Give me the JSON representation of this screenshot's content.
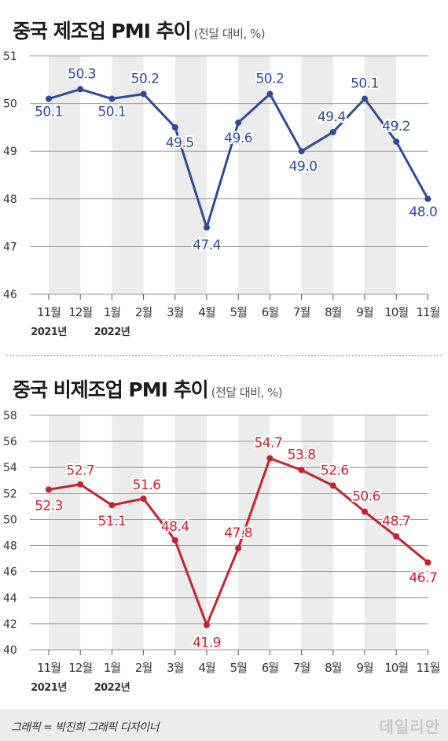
{
  "chart_data": [
    {
      "type": "line",
      "title": "중국 제조업 PMI 추이",
      "subtitle": "(전달 대비, %)",
      "categories": [
        "11월",
        "12월",
        "1월",
        "2월",
        "3월",
        "4월",
        "5월",
        "6월",
        "7월",
        "8월",
        "9월",
        "10월",
        "11월"
      ],
      "year_labels": [
        {
          "label": "2021년",
          "index": 0
        },
        {
          "label": "2022년",
          "index": 2
        }
      ],
      "series": [
        {
          "values": [
            50.1,
            50.3,
            50.1,
            50.2,
            49.5,
            47.4,
            49.6,
            50.2,
            49.0,
            49.4,
            50.1,
            49.2,
            48.0
          ]
        }
      ],
      "value_labels": [
        "50.1",
        "50.3",
        "50.1",
        "50.2",
        "49.5",
        "47.4",
        "49.6",
        "50.2",
        "49.0",
        "49.4",
        "50.1",
        "49.2",
        "48.0"
      ],
      "ylim": [
        46,
        51
      ],
      "yticks": [
        46,
        47,
        48,
        49,
        50,
        51
      ],
      "color": "#2e4a96",
      "grid": true
    },
    {
      "type": "line",
      "title": "중국 비제조업 PMI 추이",
      "subtitle": "(전달 대비, %)",
      "categories": [
        "11월",
        "12월",
        "1월",
        "2월",
        "3월",
        "4월",
        "5월",
        "6월",
        "7월",
        "8월",
        "9월",
        "10월",
        "11월"
      ],
      "year_labels": [
        {
          "label": "2021년",
          "index": 0
        },
        {
          "label": "2022년",
          "index": 2
        }
      ],
      "series": [
        {
          "values": [
            52.3,
            52.7,
            51.1,
            51.6,
            48.4,
            41.9,
            47.8,
            54.7,
            53.8,
            52.6,
            50.6,
            48.7,
            46.7
          ]
        }
      ],
      "value_labels": [
        "52.3",
        "52.7",
        "51.1",
        "51.6",
        "48.4",
        "41.9",
        "47.8",
        "54.7",
        "53.8",
        "52.6",
        "50.6",
        "48.7",
        "46.7"
      ],
      "ylim": [
        40,
        58
      ],
      "yticks": [
        40,
        42,
        44,
        46,
        48,
        50,
        52,
        54,
        56,
        58
      ],
      "color": "#c8202e",
      "grid": true
    }
  ],
  "footer": {
    "credit": "그래픽 = 박진희 그래픽 디자이너",
    "logo": "데일리안"
  }
}
